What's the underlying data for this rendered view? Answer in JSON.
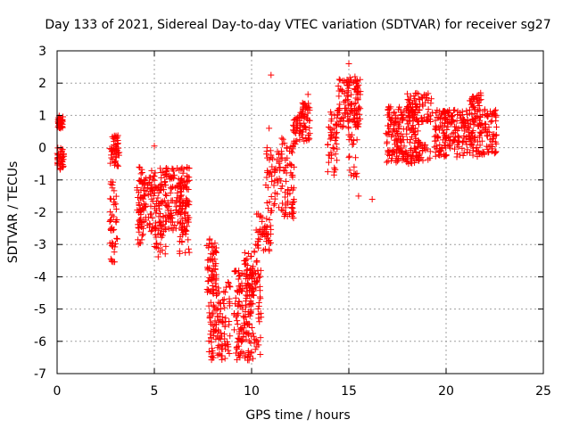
{
  "chart_data": {
    "type": "scatter",
    "title": "Day 133 of 2021, Sidereal Day-to-day VTEC variation (SDTVAR) for receiver sg27",
    "xlabel": "GPS time / hours",
    "ylabel": "SDTVAR / TECUs",
    "xlim": [
      0,
      25
    ],
    "ylim": [
      -7,
      3
    ],
    "xticks": [
      "0",
      "5",
      "10",
      "15",
      "20",
      "25"
    ],
    "yticks": [
      "-7",
      "-6",
      "-5",
      "-4",
      "-3",
      "-2",
      "-1",
      "0",
      "1",
      "2",
      "3"
    ],
    "grid": true,
    "marker": "+",
    "color": "#ff0000",
    "series": [
      {
        "name": "SDTVAR",
        "clusters": [
          {
            "x": [
              0.05,
              0.3
            ],
            "y": [
              0.6,
              1.0
            ],
            "n": 40
          },
          {
            "x": [
              0.0,
              0.35
            ],
            "y": [
              -0.7,
              0.0
            ],
            "n": 40
          },
          {
            "x": [
              2.7,
              3.2
            ],
            "y": [
              -0.6,
              0.4
            ],
            "n": 50
          },
          {
            "x": [
              2.7,
              3.1
            ],
            "y": [
              -3.6,
              -1.0
            ],
            "n": 45
          },
          {
            "x": [
              4.1,
              4.5
            ],
            "y": [
              -3.0,
              -1.0
            ],
            "n": 40
          },
          {
            "x": [
              4.2,
              6.8
            ],
            "y": [
              -2.6,
              -0.6
            ],
            "n": 260
          },
          {
            "x": [
              5.0,
              5.6
            ],
            "y": [
              -3.4,
              -2.2
            ],
            "n": 30
          },
          {
            "x": [
              6.3,
              6.8
            ],
            "y": [
              -3.3,
              -1.0
            ],
            "n": 40
          },
          {
            "x": [
              7.7,
              8.2
            ],
            "y": [
              -4.5,
              -2.8
            ],
            "n": 55
          },
          {
            "x": [
              7.8,
              8.9
            ],
            "y": [
              -6.6,
              -4.0
            ],
            "n": 120
          },
          {
            "x": [
              9.1,
              10.5
            ],
            "y": [
              -6.6,
              -3.8
            ],
            "n": 180
          },
          {
            "x": [
              9.6,
              10.3
            ],
            "y": [
              -4.5,
              -3.2
            ],
            "n": 40
          },
          {
            "x": [
              10.2,
              11.0
            ],
            "y": [
              -3.2,
              -2.0
            ],
            "n": 50
          },
          {
            "x": [
              10.7,
              11.5
            ],
            "y": [
              -2.0,
              0.0
            ],
            "n": 50
          },
          {
            "x": [
              11.5,
              12.2
            ],
            "y": [
              -2.2,
              0.4
            ],
            "n": 70
          },
          {
            "x": [
              12.1,
              12.5
            ],
            "y": [
              0.0,
              1.0
            ],
            "n": 30
          },
          {
            "x": [
              12.5,
              13.0
            ],
            "y": [
              0.2,
              1.4
            ],
            "n": 55
          },
          {
            "x": [
              13.9,
              14.4
            ],
            "y": [
              -0.9,
              1.1
            ],
            "n": 45
          },
          {
            "x": [
              14.4,
              15.6
            ],
            "y": [
              0.6,
              2.2
            ],
            "n": 130
          },
          {
            "x": [
              15.0,
              15.5
            ],
            "y": [
              -1.0,
              0.4
            ],
            "n": 20
          },
          {
            "x": [
              16.9,
              18.6
            ],
            "y": [
              -0.5,
              1.3
            ],
            "n": 200
          },
          {
            "x": [
              18.0,
              19.3
            ],
            "y": [
              0.8,
              1.7
            ],
            "n": 80
          },
          {
            "x": [
              18.5,
              19.2
            ],
            "y": [
              -0.4,
              0.2
            ],
            "n": 25
          },
          {
            "x": [
              19.4,
              22.6
            ],
            "y": [
              -0.3,
              1.2
            ],
            "n": 300
          },
          {
            "x": [
              21.2,
              21.8
            ],
            "y": [
              1.0,
              1.7
            ],
            "n": 30
          }
        ],
        "outliers": [
          {
            "x": 5.0,
            "y": 0.05
          },
          {
            "x": 10.9,
            "y": 0.6
          },
          {
            "x": 11.0,
            "y": 2.25
          },
          {
            "x": 12.9,
            "y": 1.65
          },
          {
            "x": 15.0,
            "y": 2.6
          },
          {
            "x": 15.5,
            "y": -1.5
          },
          {
            "x": 16.2,
            "y": -1.6
          },
          {
            "x": 9.4,
            "y": -6.5
          },
          {
            "x": 8.5,
            "y": -5.4
          }
        ]
      }
    ]
  }
}
